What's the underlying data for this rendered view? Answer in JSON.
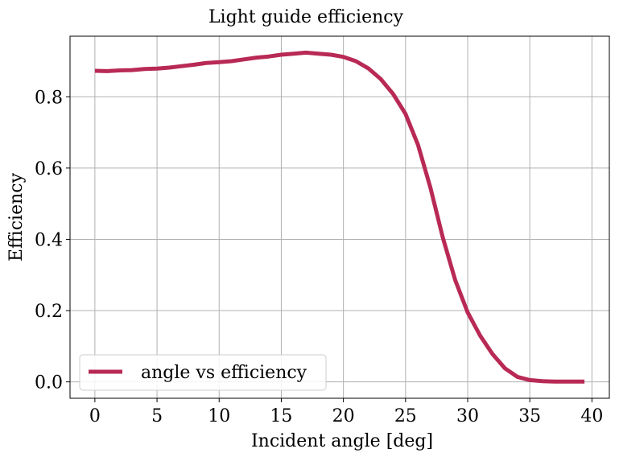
{
  "chart_data": {
    "type": "line",
    "title": "Light guide efficiency",
    "xlabel": "Incident angle [deg]",
    "ylabel": "Efficiency",
    "xlim": [
      -2.0,
      41.4
    ],
    "ylim": [
      -0.046,
      0.97
    ],
    "xticks": [
      0,
      5,
      10,
      15,
      20,
      25,
      30,
      35,
      40
    ],
    "yticks": [
      0.0,
      0.2,
      0.4,
      0.6,
      0.8
    ],
    "xtick_labels": [
      "0",
      "5",
      "10",
      "15",
      "20",
      "25",
      "30",
      "35",
      "40"
    ],
    "ytick_labels": [
      "0.0",
      "0.2",
      "0.4",
      "0.6",
      "0.8"
    ],
    "grid": true,
    "legend_position": "lower-left",
    "series": [
      {
        "name": "angle vs efficiency",
        "color": "#b82a55",
        "x": [
          0,
          1,
          2,
          3,
          4,
          5,
          6,
          7,
          8,
          9,
          10,
          11,
          12,
          13,
          14,
          15,
          16,
          17,
          18,
          19,
          20,
          21,
          22,
          23,
          24,
          25,
          26,
          27,
          28,
          29,
          30,
          31,
          32,
          33,
          34,
          35,
          36,
          37,
          38,
          39.4
        ],
        "y": [
          0.873,
          0.872,
          0.874,
          0.875,
          0.878,
          0.879,
          0.882,
          0.886,
          0.89,
          0.895,
          0.897,
          0.9,
          0.905,
          0.91,
          0.913,
          0.918,
          0.921,
          0.924,
          0.921,
          0.918,
          0.912,
          0.9,
          0.88,
          0.85,
          0.808,
          0.752,
          0.665,
          0.545,
          0.405,
          0.285,
          0.195,
          0.13,
          0.078,
          0.038,
          0.014,
          0.005,
          0.002,
          0.001,
          0.001,
          0.001
        ]
      }
    ]
  }
}
